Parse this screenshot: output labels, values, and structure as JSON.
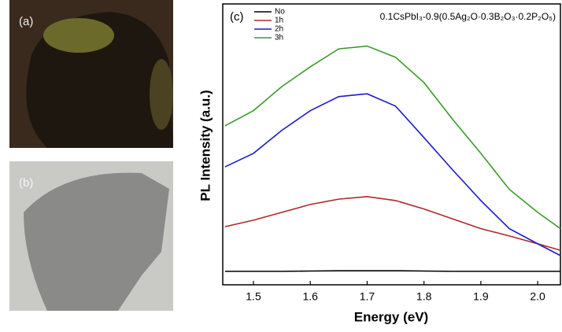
{
  "photos": [
    {
      "label": "(a)"
    },
    {
      "label": "(b)"
    }
  ],
  "chart_data": {
    "type": "line",
    "panel_label": "(c)",
    "title": "0.1CsPbI₃-0.9(0.5Ag₂O·0.3B₂O₃·0.2P₂O₅)",
    "xlabel": "Energy (eV)",
    "ylabel": "PL Intensity (a.u.)",
    "x": [
      1.45,
      1.5,
      1.55,
      1.6,
      1.65,
      1.7,
      1.75,
      1.8,
      1.85,
      1.9,
      1.95,
      2.0,
      2.04
    ],
    "series": [
      {
        "name": "No",
        "color": "#000000",
        "values": [
          4.8,
          4.8,
          4.8,
          4.9,
          5,
          5,
          5,
          4.9,
          4.8,
          4.8,
          4.8,
          4.8,
          4.8
        ]
      },
      {
        "name": "1h",
        "color": "#b0282a",
        "values": [
          20.7,
          23,
          25.8,
          28.6,
          30.5,
          31.4,
          30,
          27,
          23.5,
          20,
          17.4,
          14.6,
          12.3
        ]
      },
      {
        "name": "2h",
        "color": "#1c1cc8",
        "values": [
          42,
          46.8,
          55,
          62,
          67,
          68,
          63.6,
          52.4,
          41,
          30,
          20,
          14.6,
          10.4
        ]
      },
      {
        "name": "3h",
        "color": "#3c9a2a",
        "values": [
          56.6,
          62,
          70.6,
          77.6,
          84,
          85,
          81,
          72,
          59,
          46.8,
          34,
          25.8,
          20
        ]
      }
    ],
    "xlim": [
      1.446,
      2.04
    ],
    "ylim": [
      0,
      100
    ],
    "xticks": [
      1.5,
      1.6,
      1.7,
      1.8,
      1.9,
      {
        "value": 2,
        "label": "2.0"
      }
    ],
    "legend": "upper left"
  }
}
